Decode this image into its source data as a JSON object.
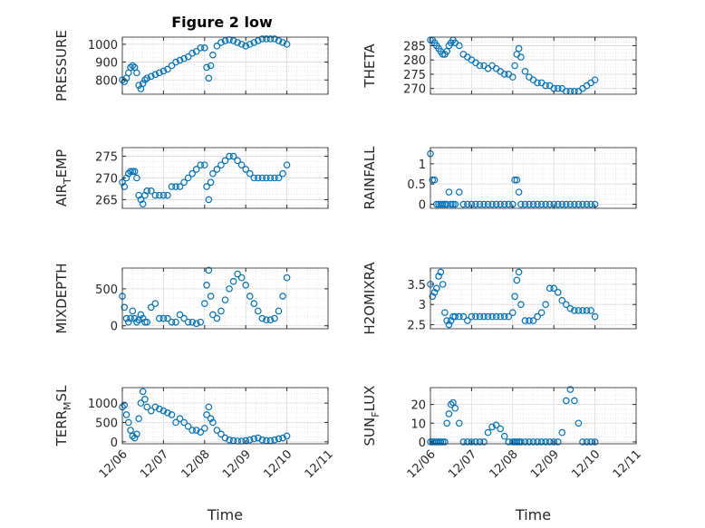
{
  "figure": {
    "title": "Figure 2 low",
    "marker_color": "#0072BD",
    "axis_color": "#262626",
    "grid_color": "#dcdcdc"
  },
  "chart_data": [
    {
      "type": "scatter",
      "title": "Figure 2 low",
      "ylabel": "PRESSURE",
      "xlabel": "",
      "x_ticks": [
        "12/06",
        "12/07",
        "12/08",
        "12/09",
        "12/10",
        "12/11"
      ],
      "xlim": [
        0,
        5
      ],
      "ylim": [
        720,
        1040
      ],
      "y_ticks": [
        800,
        900,
        1000
      ],
      "grid": true,
      "series": [
        {
          "x": [
            0.0,
            0.05,
            0.1,
            0.15,
            0.2,
            0.25,
            0.3,
            0.35,
            0.4,
            0.45,
            0.5,
            0.55,
            0.6,
            0.7,
            0.8,
            0.9,
            1.0,
            1.1,
            1.2,
            1.3,
            1.4,
            1.5,
            1.6,
            1.7,
            1.8,
            1.9,
            2.0,
            2.05,
            2.1,
            2.15,
            2.2,
            2.3,
            2.4,
            2.5,
            2.6,
            2.7,
            2.8,
            2.9,
            3.0,
            3.1,
            3.2,
            3.3,
            3.4,
            3.5,
            3.6,
            3.7,
            3.8,
            3.9,
            4.0
          ],
          "y": [
            800,
            790,
            810,
            840,
            870,
            880,
            870,
            840,
            770,
            750,
            780,
            800,
            810,
            820,
            830,
            840,
            850,
            860,
            880,
            900,
            910,
            920,
            930,
            950,
            960,
            980,
            980,
            870,
            810,
            880,
            940,
            990,
            1010,
            1020,
            1025,
            1020,
            1010,
            1000,
            990,
            1000,
            1010,
            1020,
            1030,
            1030,
            1030,
            1030,
            1020,
            1010,
            1000
          ]
        }
      ]
    },
    {
      "type": "scatter",
      "ylabel": "THETA",
      "xlabel": "",
      "x_ticks": [
        "12/06",
        "12/07",
        "12/08",
        "12/09",
        "12/10",
        "12/11"
      ],
      "xlim": [
        0,
        5
      ],
      "ylim": [
        268,
        288
      ],
      "y_ticks": [
        270,
        275,
        280,
        285
      ],
      "grid": true,
      "series": [
        {
          "x": [
            0.0,
            0.05,
            0.1,
            0.15,
            0.2,
            0.25,
            0.3,
            0.35,
            0.4,
            0.45,
            0.5,
            0.55,
            0.6,
            0.7,
            0.8,
            0.9,
            1.0,
            1.1,
            1.2,
            1.3,
            1.4,
            1.5,
            1.6,
            1.7,
            1.8,
            1.9,
            2.0,
            2.05,
            2.1,
            2.15,
            2.2,
            2.3,
            2.4,
            2.5,
            2.6,
            2.7,
            2.8,
            2.9,
            3.0,
            3.1,
            3.2,
            3.3,
            3.4,
            3.5,
            3.6,
            3.7,
            3.8,
            3.9,
            4.0
          ],
          "y": [
            287,
            287,
            286,
            285,
            284,
            283,
            282,
            282,
            283,
            285,
            286,
            287,
            286,
            285,
            282,
            281,
            280,
            279,
            278,
            278,
            277,
            278,
            277,
            276,
            275,
            275,
            274,
            278,
            282,
            284,
            281,
            276,
            274,
            273,
            272,
            272,
            271,
            271,
            270,
            270,
            270,
            269,
            269,
            269,
            269,
            270,
            271,
            272,
            273
          ]
        }
      ]
    },
    {
      "type": "scatter",
      "ylabel": "AIR_TEMP",
      "xlabel": "",
      "x_ticks": [
        "12/06",
        "12/07",
        "12/08",
        "12/09",
        "12/10",
        "12/11"
      ],
      "xlim": [
        0,
        5
      ],
      "ylim": [
        263,
        277
      ],
      "y_ticks": [
        265,
        270,
        275
      ],
      "grid": true,
      "series": [
        {
          "x": [
            0.0,
            0.05,
            0.1,
            0.15,
            0.2,
            0.25,
            0.3,
            0.35,
            0.4,
            0.45,
            0.5,
            0.55,
            0.6,
            0.7,
            0.8,
            0.9,
            1.0,
            1.1,
            1.2,
            1.3,
            1.4,
            1.5,
            1.6,
            1.7,
            1.8,
            1.9,
            2.0,
            2.05,
            2.1,
            2.15,
            2.2,
            2.3,
            2.4,
            2.5,
            2.6,
            2.7,
            2.8,
            2.9,
            3.0,
            3.1,
            3.2,
            3.3,
            3.4,
            3.5,
            3.6,
            3.7,
            3.8,
            3.9,
            4.0
          ],
          "y": [
            269,
            268,
            270,
            271,
            271.5,
            271.5,
            271.5,
            270,
            266,
            265,
            264,
            266,
            267,
            267,
            266,
            266,
            266,
            266,
            268,
            268,
            268,
            269,
            270,
            271,
            272,
            273,
            273,
            268,
            265,
            269,
            271,
            272,
            273,
            274,
            275,
            275,
            274,
            273,
            272,
            271,
            270,
            270,
            270,
            270,
            270,
            270,
            270,
            271,
            273
          ]
        }
      ]
    },
    {
      "type": "scatter",
      "ylabel": "RAINFALL",
      "xlabel": "",
      "x_ticks": [
        "12/06",
        "12/07",
        "12/08",
        "12/09",
        "12/10",
        "12/11"
      ],
      "xlim": [
        0,
        5
      ],
      "ylim": [
        -0.1,
        1.4
      ],
      "y_ticks": [
        0,
        0.5,
        1
      ],
      "grid": true,
      "series": [
        {
          "x": [
            0.0,
            0.05,
            0.1,
            0.15,
            0.2,
            0.25,
            0.3,
            0.35,
            0.4,
            0.45,
            0.5,
            0.55,
            0.6,
            0.7,
            0.8,
            0.9,
            1.0,
            1.1,
            1.2,
            1.3,
            1.4,
            1.5,
            1.6,
            1.7,
            1.8,
            1.9,
            2.0,
            2.05,
            2.1,
            2.15,
            2.2,
            2.3,
            2.4,
            2.5,
            2.6,
            2.7,
            2.8,
            2.9,
            3.0,
            3.1,
            3.2,
            3.3,
            3.4,
            3.5,
            3.6,
            3.7,
            3.8,
            3.9,
            4.0
          ],
          "y": [
            1.25,
            0.6,
            0.6,
            0,
            0,
            0,
            0,
            0,
            0,
            0.3,
            0,
            0,
            0,
            0.3,
            0,
            0,
            0,
            0,
            0,
            0,
            0,
            0,
            0,
            0,
            0,
            0,
            0,
            0.6,
            0.6,
            0.3,
            0,
            0,
            0,
            0,
            0,
            0,
            0,
            0,
            0,
            0,
            0,
            0,
            0,
            0,
            0,
            0,
            0,
            0,
            0
          ]
        }
      ]
    },
    {
      "type": "scatter",
      "ylabel": "MIXDEPTH",
      "xlabel": "",
      "x_ticks": [
        "12/06",
        "12/07",
        "12/08",
        "12/09",
        "12/10",
        "12/11"
      ],
      "xlim": [
        0,
        5
      ],
      "ylim": [
        -40,
        780
      ],
      "y_ticks": [
        0,
        500
      ],
      "grid": true,
      "series": [
        {
          "x": [
            0.0,
            0.05,
            0.1,
            0.15,
            0.2,
            0.25,
            0.3,
            0.35,
            0.4,
            0.45,
            0.5,
            0.55,
            0.6,
            0.7,
            0.8,
            0.9,
            1.0,
            1.1,
            1.2,
            1.3,
            1.4,
            1.5,
            1.6,
            1.7,
            1.8,
            1.9,
            2.0,
            2.05,
            2.1,
            2.15,
            2.2,
            2.3,
            2.4,
            2.5,
            2.6,
            2.7,
            2.8,
            2.9,
            3.0,
            3.1,
            3.2,
            3.3,
            3.4,
            3.5,
            3.6,
            3.7,
            3.8,
            3.9,
            4.0
          ],
          "y": [
            400,
            250,
            100,
            50,
            100,
            200,
            100,
            50,
            80,
            150,
            100,
            50,
            50,
            250,
            300,
            100,
            100,
            100,
            50,
            50,
            150,
            100,
            50,
            50,
            30,
            50,
            300,
            550,
            750,
            400,
            150,
            100,
            200,
            350,
            500,
            600,
            700,
            650,
            550,
            400,
            300,
            200,
            100,
            80,
            80,
            100,
            200,
            400,
            650
          ]
        }
      ]
    },
    {
      "type": "scatter",
      "ylabel": "H2OMIXRA",
      "xlabel": "",
      "x_ticks": [
        "12/06",
        "12/07",
        "12/08",
        "12/09",
        "12/10",
        "12/11"
      ],
      "xlim": [
        0,
        5
      ],
      "ylim": [
        2.4,
        3.9
      ],
      "y_ticks": [
        2.5,
        3,
        3.5
      ],
      "grid": true,
      "series": [
        {
          "x": [
            0.0,
            0.05,
            0.1,
            0.15,
            0.2,
            0.25,
            0.3,
            0.35,
            0.4,
            0.45,
            0.5,
            0.55,
            0.6,
            0.7,
            0.8,
            0.9,
            1.0,
            1.1,
            1.2,
            1.3,
            1.4,
            1.5,
            1.6,
            1.7,
            1.8,
            1.9,
            2.0,
            2.05,
            2.1,
            2.15,
            2.2,
            2.3,
            2.4,
            2.5,
            2.6,
            2.7,
            2.8,
            2.9,
            3.0,
            3.1,
            3.2,
            3.3,
            3.4,
            3.5,
            3.6,
            3.7,
            3.8,
            3.9,
            4.0
          ],
          "y": [
            3.5,
            3.2,
            3.3,
            3.4,
            3.7,
            3.8,
            3.5,
            2.8,
            2.6,
            2.5,
            2.6,
            2.7,
            2.7,
            2.7,
            2.7,
            2.6,
            2.7,
            2.7,
            2.7,
            2.7,
            2.7,
            2.7,
            2.7,
            2.7,
            2.7,
            2.7,
            2.8,
            3.2,
            3.6,
            3.8,
            3.0,
            2.6,
            2.6,
            2.6,
            2.7,
            2.8,
            3.0,
            3.4,
            3.4,
            3.3,
            3.1,
            3.0,
            2.9,
            2.85,
            2.85,
            2.85,
            2.85,
            2.85,
            2.7
          ]
        }
      ]
    },
    {
      "type": "scatter",
      "ylabel": "TERR_MSL",
      "xlabel": "Time",
      "x_ticks": [
        "12/06",
        "12/07",
        "12/08",
        "12/09",
        "12/10",
        "12/11"
      ],
      "xlim": [
        0,
        5
      ],
      "ylim": [
        -50,
        1400
      ],
      "y_ticks": [
        0,
        500,
        1000
      ],
      "grid": true,
      "series": [
        {
          "x": [
            0.0,
            0.05,
            0.1,
            0.15,
            0.2,
            0.25,
            0.3,
            0.35,
            0.4,
            0.45,
            0.5,
            0.55,
            0.6,
            0.7,
            0.8,
            0.9,
            1.0,
            1.1,
            1.2,
            1.3,
            1.4,
            1.5,
            1.6,
            1.7,
            1.8,
            1.9,
            2.0,
            2.05,
            2.1,
            2.15,
            2.2,
            2.3,
            2.4,
            2.5,
            2.6,
            2.7,
            2.8,
            2.9,
            3.0,
            3.1,
            3.2,
            3.3,
            3.4,
            3.5,
            3.6,
            3.7,
            3.8,
            3.9,
            4.0
          ],
          "y": [
            900,
            950,
            700,
            500,
            300,
            150,
            100,
            200,
            600,
            1000,
            1300,
            1100,
            900,
            800,
            900,
            850,
            800,
            750,
            700,
            500,
            600,
            500,
            400,
            300,
            300,
            250,
            350,
            700,
            900,
            600,
            500,
            300,
            200,
            100,
            50,
            30,
            20,
            20,
            30,
            50,
            80,
            100,
            50,
            30,
            30,
            50,
            80,
            100,
            150
          ]
        }
      ]
    },
    {
      "type": "scatter",
      "ylabel": "SUN_FLUX",
      "xlabel": "Time",
      "x_ticks": [
        "12/06",
        "12/07",
        "12/08",
        "12/09",
        "12/10",
        "12/11"
      ],
      "xlim": [
        0,
        5
      ],
      "ylim": [
        -1,
        29
      ],
      "y_ticks": [
        0,
        10,
        20
      ],
      "grid": true,
      "series": [
        {
          "x": [
            0.0,
            0.05,
            0.1,
            0.15,
            0.2,
            0.25,
            0.3,
            0.35,
            0.4,
            0.45,
            0.5,
            0.55,
            0.6,
            0.7,
            0.8,
            0.9,
            1.0,
            1.1,
            1.2,
            1.3,
            1.4,
            1.5,
            1.6,
            1.7,
            1.8,
            1.9,
            2.0,
            2.05,
            2.1,
            2.15,
            2.2,
            2.3,
            2.4,
            2.5,
            2.6,
            2.7,
            2.8,
            2.9,
            3.0,
            3.1,
            3.2,
            3.3,
            3.4,
            3.5,
            3.6,
            3.7,
            3.8,
            3.9,
            4.0
          ],
          "y": [
            0,
            0,
            0,
            0,
            0,
            0,
            0,
            0,
            10,
            15,
            20,
            21,
            18,
            10,
            0,
            0,
            0,
            0,
            0,
            0,
            5,
            8,
            9,
            7,
            3,
            0,
            0,
            0,
            0,
            0,
            0,
            0,
            0,
            0,
            0,
            0,
            0,
            0,
            0,
            0,
            5,
            22,
            28,
            22,
            10,
            0,
            0,
            0,
            0
          ]
        }
      ]
    }
  ]
}
